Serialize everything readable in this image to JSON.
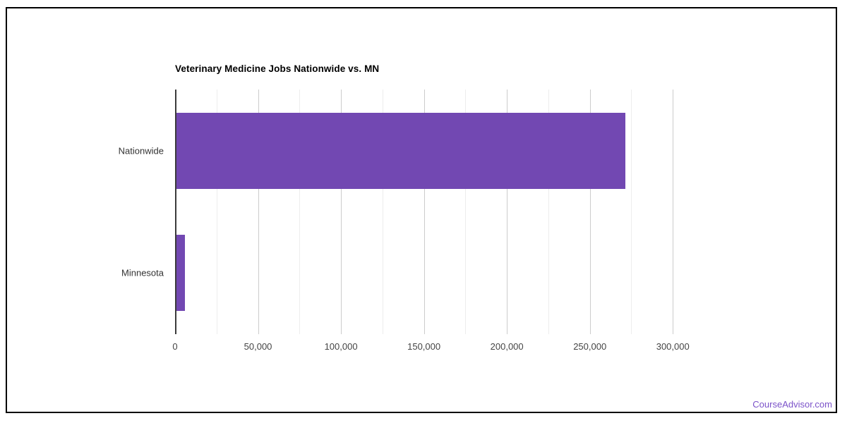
{
  "footer": {
    "watermark": "CourseAdvisor.com",
    "watermark_color": "#7b52c9"
  },
  "chart_data": {
    "type": "bar",
    "orientation": "horizontal",
    "title": "Veterinary Medicine Jobs Nationwide vs. MN",
    "categories": [
      "Nationwide",
      "Minnesota"
    ],
    "values": [
      271000,
      5700
    ],
    "xlabel": "",
    "ylabel": "",
    "xlim": [
      0,
      325000
    ],
    "x_major_step": 50000,
    "x_minor_step": 25000,
    "x_tick_labels": [
      "0",
      "50,000",
      "100,000",
      "150,000",
      "200,000",
      "250,000",
      "300,000"
    ],
    "grid": true,
    "legend_position": "none",
    "colors": {
      "bar": "#7248b2",
      "axis_line": "#3b3b3b",
      "major_grid": "#cccccc",
      "minor_grid": "#ededed",
      "tick_label": "#444444",
      "category_label": "#333333",
      "title": "#000000",
      "frame_border": "#000000"
    }
  }
}
